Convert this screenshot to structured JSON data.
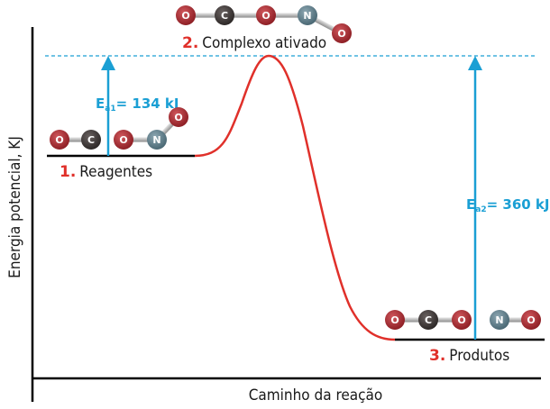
{
  "axes": {
    "y_label": "Energia potencial, KJ",
    "x_label": "Caminho da reação"
  },
  "states": {
    "reagentes": {
      "number": "1.",
      "label": "Reagentes"
    },
    "complexo": {
      "number": "2.",
      "label": "Complexo ativado"
    },
    "produtos": {
      "number": "3.",
      "label": "Produtos"
    }
  },
  "energies": {
    "ea1": {
      "main": "E",
      "sub": "a1",
      "value": "= 134 kJ"
    },
    "ea2": {
      "main": "E",
      "sub": "a2",
      "value": "= 360 kJ"
    }
  },
  "molecules": {
    "reagentes": [
      "O",
      "C",
      "O",
      "N",
      "O"
    ],
    "complexo": [
      "O",
      "C",
      "O",
      "N",
      "O"
    ],
    "produtos": [
      "O",
      "C",
      "O",
      "N",
      "O"
    ]
  },
  "colors": {
    "oxygen": "#a3282e",
    "carbon": "#3e3837",
    "nitrogen": "#5d7d8a",
    "curve": "#e0302a",
    "arrow": "#1a9fd4",
    "axis": "#000000"
  }
}
